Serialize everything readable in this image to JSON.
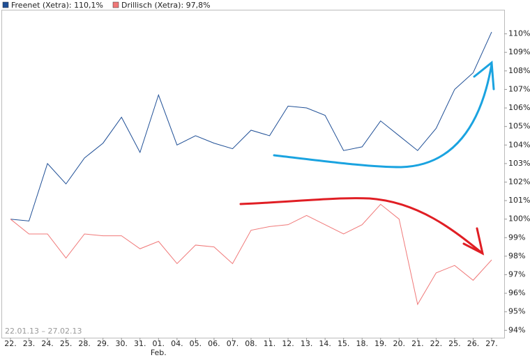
{
  "chart_data": {
    "type": "line",
    "categories": [
      "22.",
      "23.",
      "24.",
      "25.",
      "28.",
      "29.",
      "30.",
      "31.",
      "01.",
      "04.",
      "05.",
      "06.",
      "07.",
      "08.",
      "11.",
      "12.",
      "13.",
      "14.",
      "15.",
      "18.",
      "19.",
      "20.",
      "21.",
      "22.",
      "25.",
      "26.",
      "27."
    ],
    "secondary_labels": [
      null,
      null,
      null,
      null,
      null,
      null,
      null,
      null,
      "Feb.",
      null,
      null,
      null,
      null,
      null,
      null,
      null,
      null,
      null,
      null,
      null,
      null,
      null,
      null,
      null,
      null,
      null,
      null
    ],
    "series": [
      {
        "name": "Freenet (Xetra): 110,1%",
        "color": "#1f4f96",
        "values": [
          100.0,
          99.9,
          103.0,
          101.9,
          103.3,
          104.1,
          105.5,
          103.6,
          106.7,
          104.0,
          104.5,
          104.1,
          103.8,
          104.8,
          104.5,
          106.1,
          106.0,
          105.6,
          103.7,
          103.9,
          105.3,
          104.5,
          103.7,
          104.9,
          107.0,
          107.9,
          110.1
        ]
      },
      {
        "name": "Drillisch (Xetra): 97,8%",
        "color": "#f07878",
        "values": [
          100.0,
          99.2,
          99.2,
          97.9,
          99.2,
          99.1,
          99.1,
          98.4,
          98.8,
          97.6,
          98.6,
          98.5,
          97.6,
          99.4,
          99.6,
          99.7,
          100.2,
          99.7,
          99.2,
          99.7,
          100.8,
          100.0,
          95.4,
          97.1,
          97.5,
          96.7,
          97.8
        ]
      }
    ],
    "date_range": "22.01.13 – 27.02.13",
    "ylim": [
      93.6,
      111.3
    ],
    "yticks": [
      {
        "value": 94,
        "label": "94%"
      },
      {
        "value": 95,
        "label": "95%"
      },
      {
        "value": 96,
        "label": "96%"
      },
      {
        "value": 97,
        "label": "97%"
      },
      {
        "value": 98,
        "label": "98%"
      },
      {
        "value": 99,
        "label": "99%"
      },
      {
        "value": 100,
        "label": "100%"
      },
      {
        "value": 101,
        "label": "101%"
      },
      {
        "value": 102,
        "label": "102%"
      },
      {
        "value": 103,
        "label": "103%"
      },
      {
        "value": 104,
        "label": "104%"
      },
      {
        "value": 105,
        "label": "105%"
      },
      {
        "value": 106,
        "label": "106%"
      },
      {
        "value": 107,
        "label": "107%"
      },
      {
        "value": 108,
        "label": "108%"
      },
      {
        "value": 109,
        "label": "109%"
      },
      {
        "value": 110,
        "label": "110%"
      }
    ],
    "grid": false
  }
}
